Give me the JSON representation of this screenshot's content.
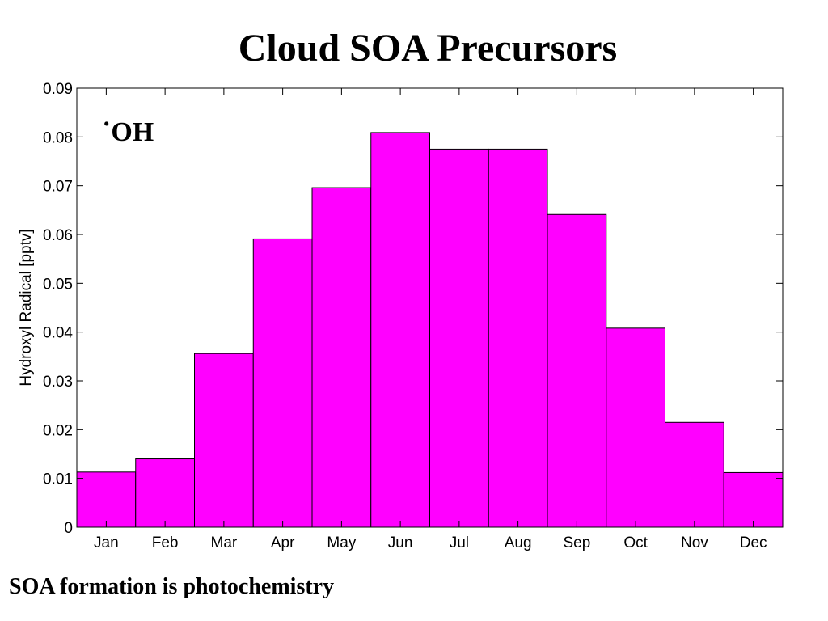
{
  "slide": {
    "title": "Cloud SOA Precursors",
    "caption": "SOA formation is photochemistry"
  },
  "chart_data": {
    "type": "bar",
    "title": "",
    "xlabel": "",
    "ylabel": "Hydroxyl Radical [pptv]",
    "annotation": "˙OH",
    "annotation_position": "top-left",
    "categories": [
      "Jan",
      "Feb",
      "Mar",
      "Apr",
      "May",
      "Jun",
      "Jul",
      "Aug",
      "Sep",
      "Oct",
      "Nov",
      "Dec"
    ],
    "values": [
      0.0113,
      0.014,
      0.0356,
      0.0591,
      0.0696,
      0.0809,
      0.0775,
      0.0775,
      0.0641,
      0.0408,
      0.0215,
      0.0112
    ],
    "ylim": [
      0,
      0.09
    ],
    "yticks": [
      "0",
      "0.01",
      "0.02",
      "0.03",
      "0.04",
      "0.05",
      "0.06",
      "0.07",
      "0.08",
      "0.09"
    ],
    "bar_color": "#ff00ff",
    "grid": false,
    "legend": "none"
  }
}
